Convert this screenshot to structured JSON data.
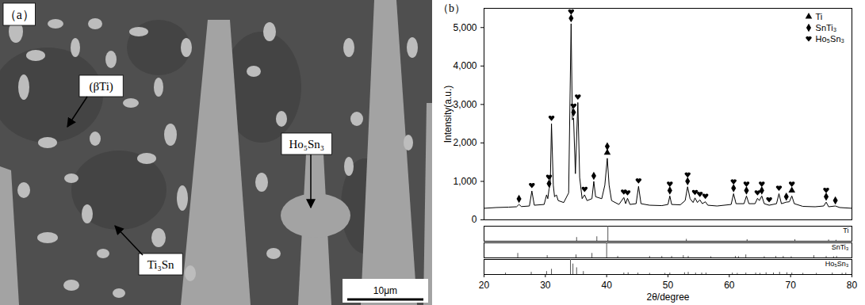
{
  "panel_a": {
    "label": "（a）",
    "annotations": [
      "(βTi)",
      "Ti₃Sn",
      "Ho₅Sn₃"
    ],
    "scale_bar": "10μm"
  },
  "chart_data": {
    "type": "line",
    "label": "（b）",
    "xlabel": "2θ/degree",
    "ylabel": "Intensity(a.u.)",
    "color": "#000000",
    "xlim": [
      20,
      80
    ],
    "xticks": [
      20,
      30,
      40,
      50,
      60,
      70,
      80
    ],
    "ylim": [
      0,
      5500
    ],
    "yticks": [
      0,
      1000,
      2000,
      3000,
      4000,
      5000
    ],
    "legend": "top-right",
    "x": [
      20.0,
      22.0,
      24.0,
      25.3,
      25.7,
      26.1,
      27.4,
      27.8,
      28.2,
      29.8,
      30.2,
      30.4,
      30.6,
      30.8,
      31.0,
      31.3,
      31.5,
      31.8,
      32.1,
      33.0,
      33.8,
      34.2,
      34.4,
      34.6,
      34.9,
      35.3,
      35.6,
      36.0,
      36.4,
      36.8,
      37.6,
      37.9,
      38.2,
      39.2,
      39.7,
      40.1,
      40.4,
      40.8,
      42.0,
      42.8,
      43.1,
      43.4,
      43.8,
      44.8,
      45.2,
      45.6,
      47.0,
      49.0,
      50.0,
      50.3,
      50.6,
      52.0,
      52.8,
      53.2,
      53.6,
      54.1,
      54.4,
      54.8,
      55.2,
      55.6,
      56.1,
      56.5,
      58.0,
      60.3,
      60.7,
      61.1,
      62.4,
      62.8,
      63.2,
      64.2,
      64.6,
      64.9,
      65.3,
      65.7,
      66.5,
      67.7,
      68.1,
      68.5,
      69.3,
      69.8,
      70.2,
      70.6,
      72.0,
      74.0,
      75.4,
      75.8,
      76.2,
      77.3,
      78.0,
      80.0
    ],
    "values": [
      300,
      320,
      330,
      340,
      400,
      345,
      360,
      750,
      380,
      400,
      650,
      550,
      800,
      900,
      2500,
      900,
      600,
      650,
      500,
      450,
      700,
      5100,
      2600,
      2650,
      1200,
      3050,
      1100,
      550,
      650,
      500,
      550,
      1000,
      600,
      550,
      900,
      1600,
      900,
      500,
      400,
      580,
      420,
      560,
      400,
      420,
      870,
      420,
      380,
      370,
      400,
      620,
      400,
      390,
      500,
      860,
      550,
      450,
      570,
      450,
      520,
      420,
      470,
      380,
      360,
      400,
      680,
      420,
      420,
      620,
      420,
      420,
      560,
      500,
      620,
      420,
      380,
      420,
      680,
      420,
      460,
      470,
      620,
      420,
      350,
      340,
      360,
      460,
      340,
      360,
      320,
      300
    ],
    "phases": [
      {
        "name": "Ti",
        "marker": "triangle"
      },
      {
        "name": "SnTi₃",
        "marker": "diamond"
      },
      {
        "name": "Ho₅Sn₃",
        "marker": "heart"
      }
    ],
    "peaks": [
      {
        "x": 25.7,
        "y": 400,
        "phases": [
          "SnTi₃"
        ]
      },
      {
        "x": 27.8,
        "y": 750,
        "phases": [
          "Ho₅Sn₃"
        ]
      },
      {
        "x": 30.6,
        "y": 800,
        "phases": [
          "SnTi₃",
          "Ho₅Sn₃"
        ]
      },
      {
        "x": 31.0,
        "y": 2500,
        "phases": [
          "Ho₅Sn₃"
        ]
      },
      {
        "x": 34.2,
        "y": 5100,
        "phases": [
          "SnTi₃",
          "Ho₅Sn₃"
        ]
      },
      {
        "x": 34.6,
        "y": 2650,
        "phases": [
          "SnTi₃",
          "Ho₅Sn₃"
        ]
      },
      {
        "x": 35.3,
        "y": 3050,
        "phases": [
          "Ho₅Sn₃"
        ]
      },
      {
        "x": 36.4,
        "y": 650,
        "phases": [
          "Ho₅Sn₃"
        ]
      },
      {
        "x": 37.9,
        "y": 1000,
        "phases": [
          "SnTi₃"
        ]
      },
      {
        "x": 40.1,
        "y": 1600,
        "phases": [
          "Ti",
          "SnTi₃"
        ]
      },
      {
        "x": 42.8,
        "y": 580,
        "phases": [
          "Ho₅Sn₃"
        ]
      },
      {
        "x": 43.4,
        "y": 560,
        "phases": [
          "Ho₅Sn₃"
        ]
      },
      {
        "x": 45.2,
        "y": 870,
        "phases": [
          "Ho₅Sn₃"
        ]
      },
      {
        "x": 50.3,
        "y": 620,
        "phases": [
          "SnTi₃",
          "Ho₅Sn₃"
        ]
      },
      {
        "x": 53.2,
        "y": 860,
        "phases": [
          "SnTi₃",
          "Ho₅Sn₃"
        ]
      },
      {
        "x": 54.4,
        "y": 570,
        "phases": [
          "Ho₅Sn₃"
        ]
      },
      {
        "x": 55.2,
        "y": 520,
        "phases": [
          "Ho₅Sn₃"
        ]
      },
      {
        "x": 56.1,
        "y": 470,
        "phases": [
          "Ho₅Sn₃"
        ]
      },
      {
        "x": 60.7,
        "y": 680,
        "phases": [
          "SnTi₃",
          "Ho₅Sn₃"
        ]
      },
      {
        "x": 62.8,
        "y": 620,
        "phases": [
          "SnTi₃",
          "Ho₅Sn₃"
        ]
      },
      {
        "x": 64.6,
        "y": 560,
        "phases": [
          "Ho₅Sn₃"
        ]
      },
      {
        "x": 65.3,
        "y": 620,
        "phases": [
          "SnTi₃",
          "Ho₅Sn₃"
        ]
      },
      {
        "x": 66.5,
        "y": 380,
        "phases": [
          "Ho₅Sn₃"
        ]
      },
      {
        "x": 68.1,
        "y": 680,
        "phases": [
          "Ho₅Sn₃"
        ]
      },
      {
        "x": 69.3,
        "y": 460,
        "phases": [
          "SnTi₃"
        ]
      },
      {
        "x": 70.2,
        "y": 620,
        "phases": [
          "Ti",
          "Ho₅Sn₃"
        ]
      },
      {
        "x": 75.8,
        "y": 460,
        "phases": [
          "SnTi₃",
          "Ho₅Sn₃"
        ]
      },
      {
        "x": 77.3,
        "y": 360,
        "phases": [
          "SnTi₃"
        ]
      }
    ],
    "reference_ylim": [
      0,
      100
    ],
    "reference_patterns": [
      {
        "name": "Ti",
        "positions": [
          35.1,
          38.4,
          40.2,
          53.0,
          62.9,
          70.7,
          76.2,
          77.4
        ],
        "intensities": [
          25,
          30,
          100,
          13,
          11,
          11,
          9,
          7
        ]
      },
      {
        "name": "SnTi₃",
        "positions": [
          25.5,
          30.3,
          35.0,
          37.6,
          40.0,
          41.8,
          47.0,
          49.0,
          50.6,
          52.5,
          53.3,
          57.0,
          61.0,
          61.5,
          62.7,
          65.7,
          67.6,
          68.8,
          70.1,
          73.8,
          75.8,
          77.0,
          77.5
        ],
        "intensities": [
          30,
          15,
          20,
          30,
          100,
          10,
          10,
          10,
          10,
          15,
          10,
          8,
          10,
          8,
          20,
          8,
          10,
          10,
          8,
          15,
          10,
          8,
          10
        ]
      },
      {
        "name": "Ho₅Sn₃",
        "positions": [
          23.5,
          27.7,
          30.2,
          31.0,
          34.1,
          34.5,
          35.1,
          36.2,
          42.8,
          43.5,
          45.1,
          47.0,
          49.5,
          50.3,
          52.7,
          53.3,
          54.5,
          55.5,
          56.2,
          60.5,
          61.3,
          62.7,
          64.3,
          65.0,
          66.0,
          67.2,
          68.2,
          69.4,
          70.2,
          72.0,
          74.2,
          76.8,
          78.4,
          79.0
        ],
        "intensities": [
          10,
          15,
          20,
          35,
          100,
          70,
          45,
          20,
          10,
          12,
          10,
          8,
          8,
          10,
          12,
          15,
          10,
          10,
          10,
          10,
          8,
          10,
          10,
          8,
          12,
          10,
          15,
          12,
          10,
          8,
          8,
          10,
          8,
          10
        ]
      }
    ]
  }
}
